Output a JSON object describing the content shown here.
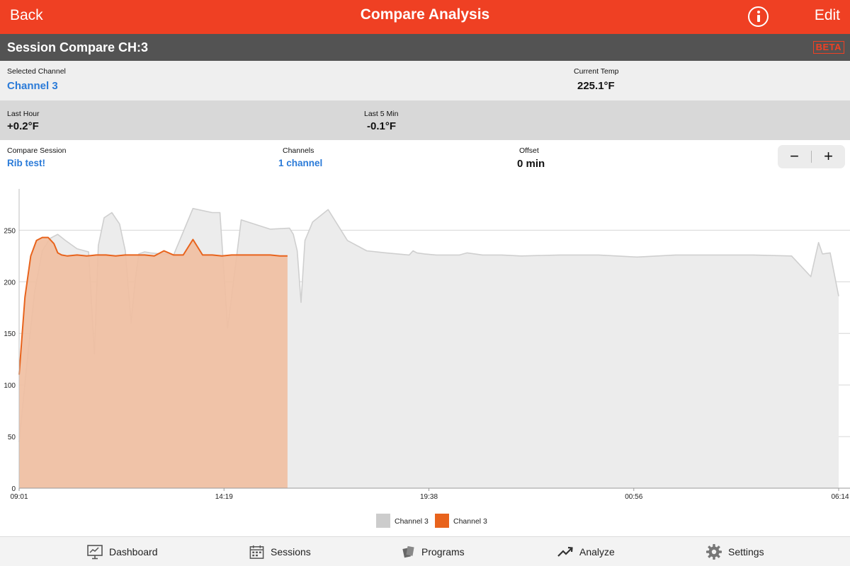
{
  "topbar": {
    "back_label": "Back",
    "title": "Compare Analysis",
    "edit_label": "Edit",
    "info_icon": "info-circle-icon"
  },
  "session": {
    "title": "Session Compare CH:3",
    "badge": "BETA"
  },
  "selected_channel": {
    "label": "Selected Channel",
    "value": "Channel 3"
  },
  "current_temp": {
    "label": "Current Temp",
    "value": "225.1°F"
  },
  "last_hour": {
    "label": "Last Hour",
    "value": "+0.2°F"
  },
  "last_5_min": {
    "label": "Last 5 Min",
    "value": "-0.1°F"
  },
  "compare_session": {
    "label": "Compare Session",
    "value": "Rib test!"
  },
  "channels": {
    "label": "Channels",
    "value": "1 channel"
  },
  "offset": {
    "label": "Offset",
    "value": "0 min"
  },
  "stepper": {
    "minus": "−",
    "plus": "+"
  },
  "colors": {
    "accent": "#ef4023",
    "header_gray": "#535353",
    "link": "#2b7bd8",
    "current_series": "#e8631c",
    "compare_series": "#cccccc"
  },
  "chart_data": {
    "type": "area",
    "title": "",
    "xlabel": "",
    "ylabel": "",
    "x_tick_labels": [
      "09:01",
      "14:19",
      "19:38",
      "00:56",
      "06:14"
    ],
    "x_range_hours": [
      0,
      21.22
    ],
    "ylim": [
      0,
      290
    ],
    "y_ticks": [
      0,
      50,
      100,
      150,
      200,
      250
    ],
    "grid": "horizontal",
    "legend_position": "bottom-center",
    "series": [
      {
        "name": "Channel 3",
        "color": "#cccccc",
        "x_hours": [
          0,
          0.2,
          0.4,
          0.6,
          0.8,
          1.0,
          1.2,
          1.5,
          1.8,
          1.95,
          2.05,
          2.2,
          2.4,
          2.6,
          2.75,
          2.9,
          3.0,
          3.1,
          3.25,
          3.4,
          3.7,
          4.0,
          4.5,
          5.0,
          5.2,
          5.4,
          5.75,
          6.5,
          7.0,
          7.1,
          7.2,
          7.3,
          7.4,
          7.6,
          8.0,
          8.5,
          9.0,
          9.5,
          9.8,
          10.1,
          10.2,
          10.3,
          10.5,
          10.8,
          11.2,
          11.4,
          11.6,
          12.0,
          12.5,
          13.0,
          14.0,
          15.0,
          16.0,
          17.0,
          18.0,
          19.0,
          20.0,
          20.5,
          20.7,
          20.8,
          21.0,
          21.22
        ],
        "values": [
          45,
          120,
          190,
          230,
          242,
          246,
          240,
          232,
          229,
          130,
          235,
          262,
          267,
          256,
          230,
          160,
          200,
          227,
          229,
          228,
          227,
          226,
          271,
          267,
          267,
          155,
          260,
          251,
          252,
          246,
          230,
          180,
          240,
          258,
          270,
          240,
          230,
          228,
          227,
          226,
          230,
          228,
          227,
          226,
          226,
          226,
          228,
          226,
          226,
          225,
          226,
          226,
          224,
          226,
          226,
          226,
          225,
          205,
          238,
          227,
          228,
          186
        ]
      },
      {
        "name": "Channel 3",
        "color": "#e8631c",
        "x_hours": [
          0,
          0.15,
          0.3,
          0.45,
          0.6,
          0.75,
          0.9,
          1.0,
          1.1,
          1.25,
          1.5,
          1.75,
          2.0,
          2.25,
          2.5,
          2.75,
          3.0,
          3.25,
          3.5,
          3.75,
          4.0,
          4.25,
          4.5,
          4.75,
          5.0,
          5.25,
          5.5,
          5.75,
          6.0,
          6.25,
          6.5,
          6.75,
          6.95
        ],
        "values": [
          110,
          185,
          225,
          240,
          243,
          243,
          237,
          228,
          226,
          225,
          226,
          225,
          226,
          226,
          225,
          226,
          226,
          226,
          225,
          230,
          226,
          226,
          241,
          226,
          226,
          225,
          226,
          226,
          226,
          226,
          226,
          225,
          225
        ]
      }
    ]
  },
  "tabs": [
    {
      "label": "Dashboard",
      "icon": "dashboard-icon"
    },
    {
      "label": "Sessions",
      "icon": "calendar-icon"
    },
    {
      "label": "Programs",
      "icon": "programs-icon"
    },
    {
      "label": "Analyze",
      "icon": "trend-icon"
    },
    {
      "label": "Settings",
      "icon": "gear-icon"
    }
  ]
}
